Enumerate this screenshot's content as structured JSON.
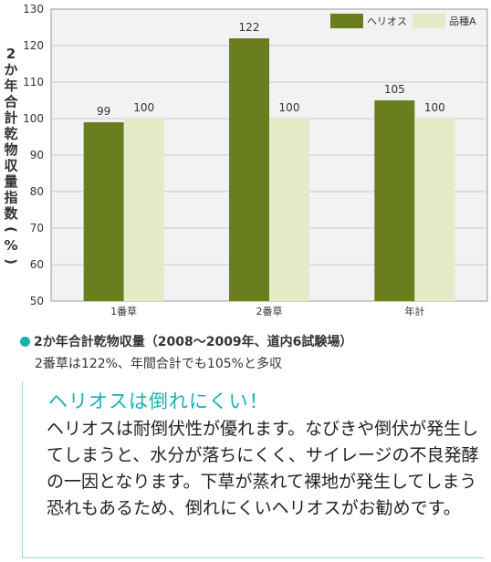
{
  "chart_data": {
    "type": "bar",
    "categories": [
      "1番草",
      "2番草",
      "年計"
    ],
    "series": [
      {
        "name": "ヘリオス",
        "values": [
          99,
          122,
          105
        ],
        "color": "#6a7d1f"
      },
      {
        "name": "品種A",
        "values": [
          100,
          100,
          100
        ],
        "color": "#e4ebc7"
      }
    ],
    "ylabel": "2か年合計乾物収量指数(%)",
    "ylim": [
      50,
      130
    ],
    "yticks": [
      50,
      60,
      70,
      80,
      90,
      100,
      110,
      120,
      130
    ],
    "grid": true,
    "legend_position": "top-right",
    "plot_background": "#f2f2f2"
  },
  "caption": {
    "title": "2か年合計乾物収量（2008〜2009年、道内6試験場）",
    "subtitle": "2番草は122%、年間合計でも105%と多収"
  },
  "feature": {
    "heading": "ヘリオスは倒れにくい！",
    "body": "ヘリオスは耐倒伏性が優れます。なびきや倒伏が発生してしまうと、水分が落ちにくく、サイレージの不良発酵の一因となります。下草が蒸れて裸地が発生してしまう恐れもあるため、倒れにくいヘリオスがお勧めです。"
  },
  "colors": {
    "accent": "#1ab0b0"
  }
}
